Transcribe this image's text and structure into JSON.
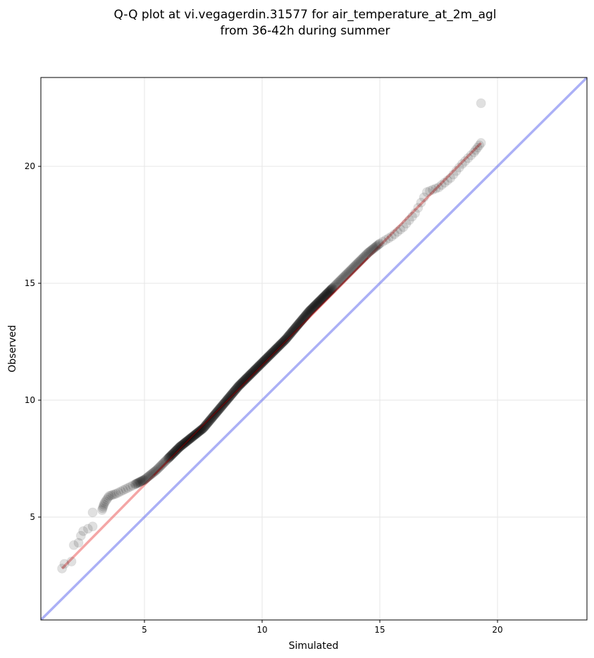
{
  "chart_data": {
    "type": "scatter",
    "title": "Q-Q plot at vi.vegagerdin.31577 for air_temperature_at_2m_agl",
    "subtitle": "from 36-42h during summer",
    "xlabel": "Simulated",
    "ylabel": "Observed",
    "xlim": [
      0.6,
      23.8
    ],
    "ylim": [
      0.6,
      23.8
    ],
    "x_ticks": [
      5,
      10,
      15,
      20
    ],
    "y_ticks": [
      5,
      10,
      15,
      20
    ],
    "grid": true,
    "colors": {
      "points": "#000000",
      "fit_line": "#f08080",
      "identity_line": "#6670ee",
      "fit_overlay": "#a00000"
    },
    "quantile_points": [
      [
        1.5,
        2.8
      ],
      [
        1.6,
        3.0
      ],
      [
        1.9,
        3.1
      ],
      [
        2.0,
        3.8
      ],
      [
        2.2,
        3.9
      ],
      [
        2.3,
        4.2
      ],
      [
        2.4,
        4.4
      ],
      [
        2.6,
        4.5
      ],
      [
        2.8,
        4.6
      ],
      [
        2.8,
        5.2
      ],
      [
        3.2,
        5.3
      ],
      [
        3.3,
        5.6
      ],
      [
        3.5,
        5.9
      ],
      [
        3.8,
        6.0
      ],
      [
        4.2,
        6.2
      ],
      [
        4.6,
        6.4
      ],
      [
        5.0,
        6.6
      ],
      [
        5.5,
        7.0
      ],
      [
        6.0,
        7.5
      ],
      [
        6.5,
        8.0
      ],
      [
        7.0,
        8.4
      ],
      [
        7.5,
        8.8
      ],
      [
        8.0,
        9.4
      ],
      [
        8.5,
        10.0
      ],
      [
        9.0,
        10.6
      ],
      [
        9.5,
        11.1
      ],
      [
        10.0,
        11.6
      ],
      [
        10.5,
        12.1
      ],
      [
        11.0,
        12.6
      ],
      [
        11.5,
        13.2
      ],
      [
        12.0,
        13.8
      ],
      [
        12.5,
        14.3
      ],
      [
        13.0,
        14.8
      ],
      [
        13.5,
        15.3
      ],
      [
        14.0,
        15.8
      ],
      [
        14.5,
        16.3
      ],
      [
        15.0,
        16.7
      ],
      [
        15.5,
        17.0
      ],
      [
        16.0,
        17.4
      ],
      [
        16.5,
        18.0
      ],
      [
        17.0,
        18.9
      ],
      [
        17.5,
        19.1
      ],
      [
        18.0,
        19.5
      ],
      [
        18.5,
        20.1
      ],
      [
        19.0,
        20.6
      ],
      [
        19.3,
        21.0
      ],
      [
        19.3,
        22.7
      ]
    ],
    "fit_line": {
      "x": [
        1.5,
        19.3
      ],
      "y": [
        2.8,
        21.0
      ]
    },
    "identity_line": {
      "x": [
        0.6,
        23.8
      ],
      "y": [
        0.6,
        23.8
      ]
    }
  }
}
